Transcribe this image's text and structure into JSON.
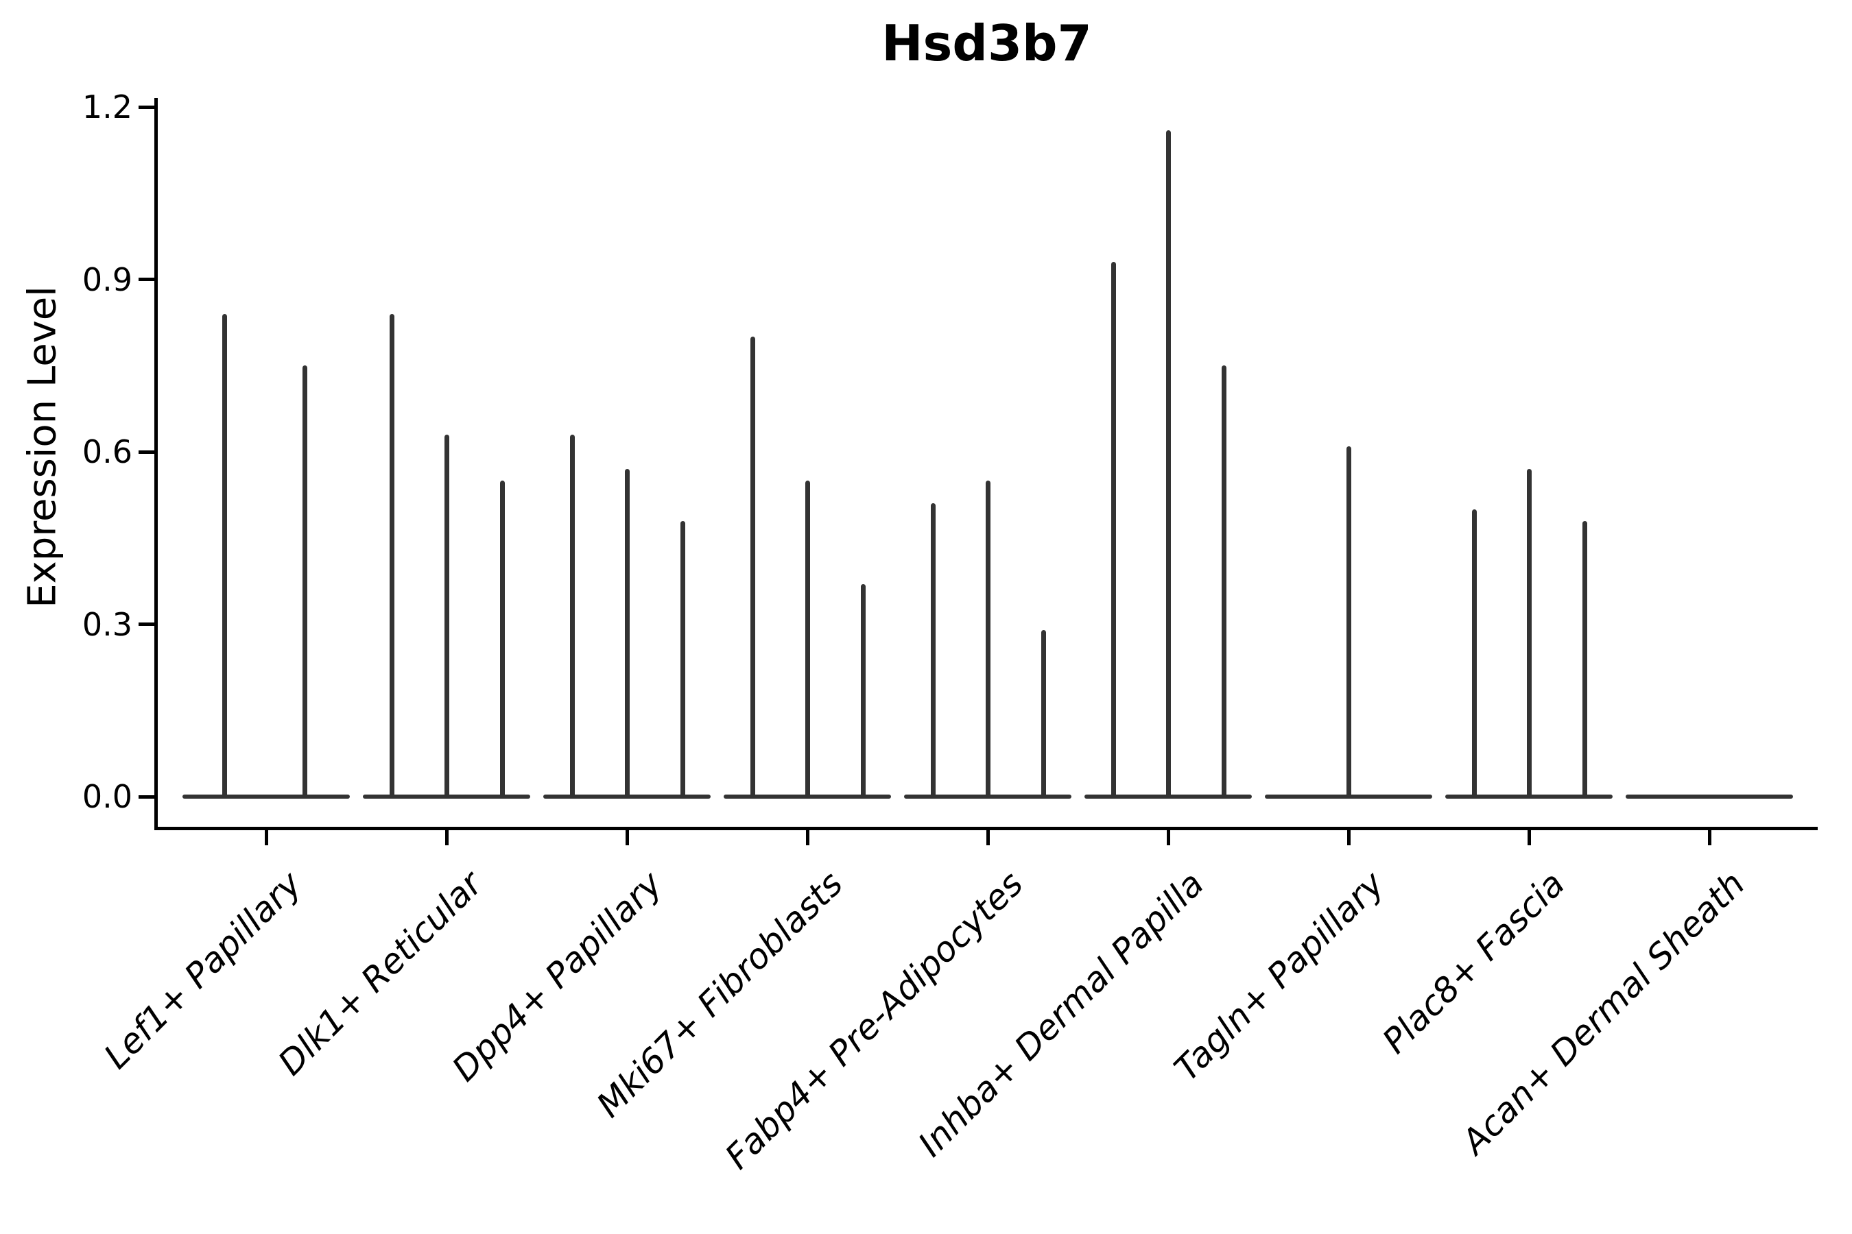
{
  "chart_data": {
    "type": "violin",
    "title": "Hsd3b7",
    "ylabel": "Expression Level",
    "xlabel": "",
    "yticks": [
      0.0,
      0.3,
      0.6,
      0.9,
      1.2
    ],
    "ytick_labels": [
      "0.0",
      "0.3",
      "0.6",
      "0.9",
      "1.2"
    ],
    "ylim": [
      -0.06,
      1.22
    ],
    "grid": false,
    "legend": "none",
    "violin_color": "#333333",
    "axis_color": "#000000",
    "categories": [
      "Lef1+ Papillary",
      "Dlk1+ Reticular",
      "Dpp4+ Papillary",
      "Mki67+ Fibroblasts",
      "Fabp4+ Pre-Adipocytes",
      "Inhba+ Dermal Papilla",
      "Tagln+ Papillary",
      "Plac8+ Fascia",
      "Acan+ Dermal Sheath"
    ],
    "series": [
      {
        "category": "Lef1+ Papillary",
        "violin_maxima": [
          0.84,
          0.75
        ]
      },
      {
        "category": "Dlk1+ Reticular",
        "violin_maxima": [
          0.84,
          0.63,
          0.55
        ]
      },
      {
        "category": "Dpp4+ Papillary",
        "violin_maxima": [
          0.63,
          0.57,
          0.48
        ]
      },
      {
        "category": "Mki67+ Fibroblasts",
        "violin_maxima": [
          0.8,
          0.55,
          0.37
        ]
      },
      {
        "category": "Fabp4+ Pre-Adipocytes",
        "violin_maxima": [
          0.51,
          0.55,
          0.29
        ]
      },
      {
        "category": "Inhba+ Dermal Papilla",
        "violin_maxima": [
          0.93,
          1.16,
          0.75
        ]
      },
      {
        "category": "Tagln+ Papillary",
        "violin_maxima": [
          0.61
        ]
      },
      {
        "category": "Plac8+ Fascia",
        "violin_maxima": [
          0.5,
          0.57,
          0.48
        ]
      },
      {
        "category": "Acan+ Dermal Sheath",
        "violin_maxima": []
      }
    ]
  }
}
